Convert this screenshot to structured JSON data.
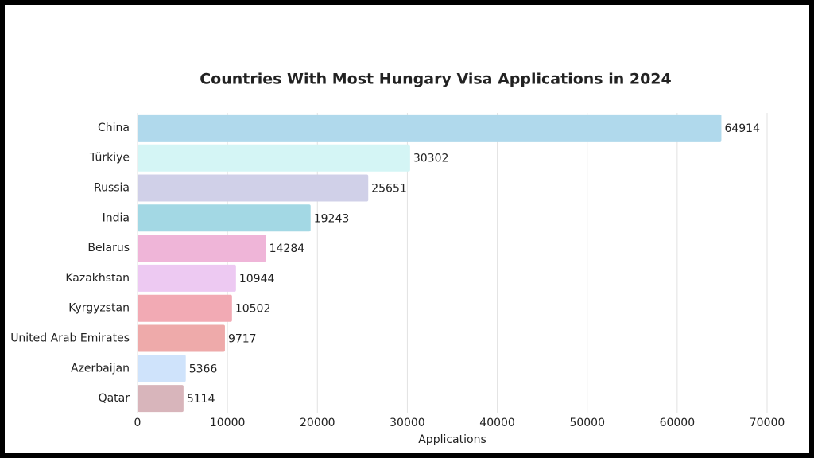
{
  "chart_data": {
    "type": "bar",
    "orientation": "horizontal",
    "title": "Countries With Most Hungary Visa Applications in 2024",
    "xlabel": "Applications",
    "categories": [
      "China",
      "Türkiye",
      "Russia",
      "India",
      "Belarus",
      "Kazakhstan",
      "Kyrgyzstan",
      "United Arab Emirates",
      "Azerbaijan",
      "Qatar"
    ],
    "values": [
      64914,
      30302,
      25651,
      19243,
      14284,
      10944,
      10502,
      9717,
      5366,
      5114
    ],
    "colors": [
      "#b0d9ec",
      "#d4f5f5",
      "#d0d0e8",
      "#a3d8e4",
      "#efb5d8",
      "#edc9f2",
      "#f2aab4",
      "#eeaaaa",
      "#cfe3fb",
      "#d8b5bb"
    ],
    "xlim": [
      0,
      70000
    ],
    "xticks": [
      0,
      10000,
      20000,
      30000,
      40000,
      50000,
      60000,
      70000
    ],
    "grid": true
  }
}
